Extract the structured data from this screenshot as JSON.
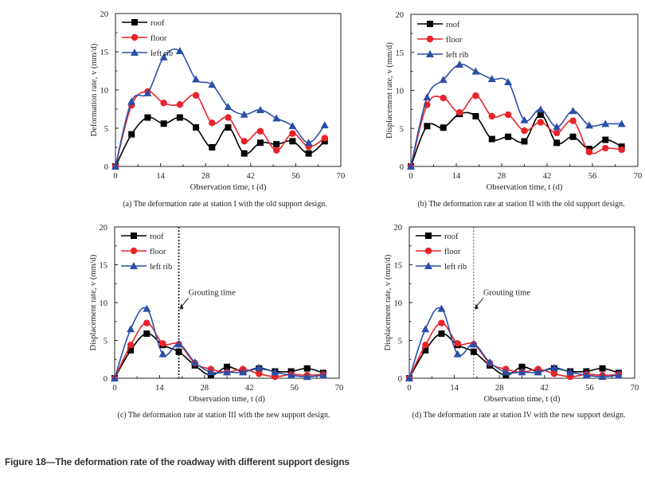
{
  "figure_caption": "Figure 18—The deformation rate of the roadway with different support designs",
  "chart_data": [
    {
      "id": "a",
      "type": "line",
      "title": "",
      "caption": "(a) The deformation rate at station I with the old support design.",
      "xlabel": "Observation time, t (d)",
      "ylabel": "Deformation rate, v (mm/d)",
      "xlim": [
        0,
        70
      ],
      "ylim": [
        0,
        20
      ],
      "xticks": [
        0,
        14,
        28,
        42,
        56,
        70
      ],
      "yticks": [
        0,
        5,
        10,
        15,
        20
      ],
      "grid": false,
      "legend_position": "top-left",
      "x": [
        0,
        5,
        10,
        15,
        20,
        25,
        30,
        35,
        40,
        45,
        50,
        55,
        60,
        65
      ],
      "series": [
        {
          "name": "roof",
          "color": "#000000",
          "marker": "square",
          "values": [
            0,
            4.2,
            6.4,
            5.6,
            6.4,
            5.1,
            2.5,
            5.1,
            1.7,
            3.1,
            2.9,
            3.3,
            1.7,
            3.3
          ]
        },
        {
          "name": "floor",
          "color": "#e8232a",
          "marker": "circle",
          "values": [
            0,
            8.0,
            9.8,
            8.3,
            8.1,
            9.3,
            5.7,
            6.4,
            3.3,
            4.6,
            2.1,
            4.3,
            2.6,
            3.7
          ]
        },
        {
          "name": "left rib",
          "color": "#2b4fa8",
          "marker": "triangle",
          "values": [
            0,
            8.5,
            9.6,
            14.3,
            15.1,
            11.4,
            10.7,
            7.8,
            6.8,
            7.4,
            6.3,
            5.3,
            3.1,
            5.4
          ]
        }
      ]
    },
    {
      "id": "b",
      "type": "line",
      "title": "",
      "caption": "(b) The deformation rate at station II with the old support design.",
      "xlabel": "Observation time, t (d)",
      "ylabel": "Displacement rate, v (mm/d)",
      "xlim": [
        0,
        70
      ],
      "ylim": [
        0,
        20
      ],
      "xticks": [
        0,
        14,
        28,
        42,
        56,
        70
      ],
      "yticks": [
        0,
        5,
        10,
        15,
        20
      ],
      "grid": false,
      "legend_position": "top-left",
      "x": [
        0,
        5,
        10,
        15,
        20,
        25,
        30,
        35,
        40,
        45,
        50,
        55,
        60,
        65
      ],
      "series": [
        {
          "name": "roof",
          "color": "#000000",
          "marker": "square",
          "values": [
            0,
            5.3,
            5.1,
            6.9,
            6.6,
            3.6,
            3.9,
            3.3,
            6.8,
            3.1,
            3.9,
            2.3,
            3.5,
            2.6
          ]
        },
        {
          "name": "floor",
          "color": "#e8232a",
          "marker": "circle",
          "values": [
            0,
            8.1,
            9.0,
            7.1,
            9.3,
            6.6,
            6.8,
            4.7,
            5.8,
            4.4,
            6.0,
            1.9,
            2.4,
            2.2
          ]
        },
        {
          "name": "left rib",
          "color": "#2b4fa8",
          "marker": "triangle",
          "values": [
            0,
            9.1,
            11.4,
            13.4,
            12.5,
            11.5,
            11.1,
            6.1,
            7.5,
            5.2,
            7.3,
            5.4,
            5.6,
            5.6
          ]
        }
      ]
    },
    {
      "id": "c",
      "type": "line",
      "title": "",
      "caption": "(c) The deformation rate at station III with the new support design.",
      "xlabel": "Observation time, t (d)",
      "ylabel": "Displacement rate, v (mm/d)",
      "xlim": [
        0,
        70
      ],
      "ylim": [
        0,
        20
      ],
      "xticks": [
        0,
        14,
        28,
        42,
        56,
        70
      ],
      "yticks": [
        0,
        5,
        10,
        15,
        20
      ],
      "grid": false,
      "legend_position": "top-left",
      "annotation": {
        "text": "Grouting time",
        "x": 20
      },
      "x": [
        0,
        5,
        10,
        15,
        20,
        25,
        30,
        35,
        40,
        45,
        50,
        55,
        60,
        65
      ],
      "series": [
        {
          "name": "roof",
          "color": "#000000",
          "marker": "square",
          "values": [
            0,
            3.7,
            5.9,
            4.4,
            3.5,
            1.7,
            0.4,
            1.5,
            0.9,
            1.3,
            0.9,
            0.9,
            1.3,
            0.7
          ]
        },
        {
          "name": "floor",
          "color": "#e8232a",
          "marker": "circle",
          "values": [
            0,
            4.4,
            7.3,
            4.6,
            4.5,
            2.0,
            1.2,
            0.8,
            1.2,
            0.6,
            0.2,
            0.5,
            0.4,
            0.5
          ]
        },
        {
          "name": "left rib",
          "color": "#2b4fa8",
          "marker": "triangle",
          "values": [
            0,
            6.5,
            9.2,
            3.2,
            4.5,
            2.1,
            0.8,
            0.8,
            0.8,
            1.4,
            0.8,
            0.4,
            0.2,
            0.4
          ]
        }
      ]
    },
    {
      "id": "d",
      "type": "line",
      "title": "",
      "caption": "(d) The deformation rate at station IV with the new support design.",
      "xlabel": "Observation time, t (d)",
      "ylabel": "Displacement rate, v (mm/d)",
      "xlim": [
        0,
        70
      ],
      "ylim": [
        0,
        20
      ],
      "xticks": [
        0,
        14,
        28,
        42,
        56,
        70
      ],
      "yticks": [
        0,
        5,
        10,
        15,
        20
      ],
      "grid": false,
      "legend_position": "top-left",
      "annotation": {
        "text": "Grouting time",
        "x": 20
      },
      "x": [
        0,
        5,
        10,
        15,
        20,
        25,
        30,
        35,
        40,
        45,
        50,
        55,
        60,
        65
      ],
      "series": [
        {
          "name": "roof",
          "color": "#000000",
          "marker": "square",
          "values": [
            0,
            3.7,
            5.9,
            4.4,
            3.5,
            1.7,
            0.4,
            1.5,
            0.9,
            1.3,
            0.9,
            0.9,
            1.3,
            0.7
          ]
        },
        {
          "name": "floor",
          "color": "#e8232a",
          "marker": "circle",
          "values": [
            0,
            4.4,
            7.3,
            4.6,
            4.5,
            2.0,
            1.2,
            0.8,
            1.2,
            0.6,
            0.2,
            0.5,
            0.4,
            0.5
          ]
        },
        {
          "name": "left rib",
          "color": "#2b4fa8",
          "marker": "triangle",
          "values": [
            0,
            6.5,
            9.2,
            3.2,
            4.5,
            2.1,
            0.8,
            0.8,
            0.8,
            1.4,
            0.8,
            0.4,
            0.2,
            0.4
          ]
        }
      ]
    }
  ]
}
